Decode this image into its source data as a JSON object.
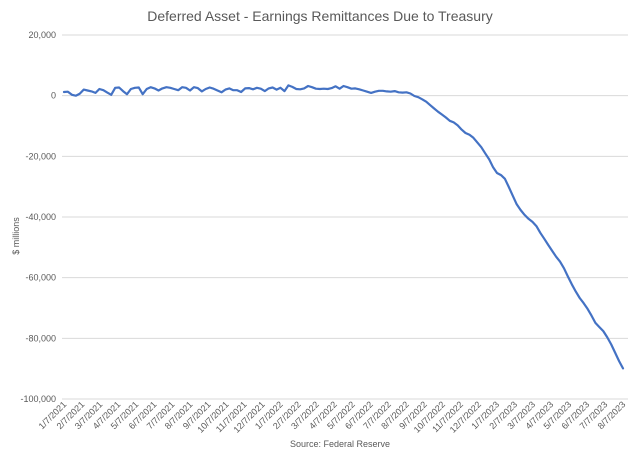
{
  "chart_data": {
    "type": "line",
    "title": "Deferred Asset - Earnings Remittances Due to Treasury",
    "xlabel": "",
    "ylabel": "$ millions",
    "source": "Source: Federal Reserve",
    "ylim": [
      -100000,
      20000
    ],
    "yticks": [
      20000,
      0,
      -20000,
      -40000,
      -60000,
      -80000,
      -100000
    ],
    "ytick_labels": [
      "20,000",
      "0",
      "-20,000",
      "-40,000",
      "-60,000",
      "-80,000",
      "-100,000"
    ],
    "xtick_labels": [
      "1/7/2021",
      "2/7/2021",
      "3/7/2021",
      "4/7/2021",
      "5/7/2021",
      "6/7/2021",
      "7/7/2021",
      "8/7/2021",
      "9/7/2021",
      "10/7/2021",
      "11/7/2021",
      "12/7/2021",
      "1/7/2022",
      "2/7/2022",
      "3/7/2022",
      "4/7/2022",
      "5/7/2022",
      "6/7/2022",
      "7/7/2022",
      "8/7/2022",
      "9/7/2022",
      "10/7/2022",
      "11/7/2022",
      "12/7/2022",
      "1/7/2023",
      "2/7/2023",
      "3/7/2023",
      "4/7/2023",
      "5/7/2023",
      "6/7/2023",
      "7/7/2023",
      "8/7/2023"
    ],
    "grid": true,
    "series": [
      {
        "name": "Deferred Asset",
        "color": "#4472c4",
        "values": [
          1200,
          1300,
          300,
          0,
          600,
          2000,
          1700,
          1400,
          900,
          2200,
          1800,
          1000,
          300,
          2600,
          2700,
          1500,
          500,
          2200,
          2600,
          2700,
          500,
          2200,
          2800,
          2400,
          1700,
          2400,
          2800,
          2600,
          2200,
          1800,
          2800,
          2600,
          1700,
          2800,
          2500,
          1400,
          2200,
          2700,
          2300,
          1700,
          1100,
          2000,
          2400,
          1800,
          1800,
          1200,
          2400,
          2500,
          2100,
          2600,
          2300,
          1500,
          2400,
          2700,
          2000,
          2600,
          1500,
          3400,
          2900,
          2200,
          2100,
          2400,
          3200,
          2800,
          2300,
          2200,
          2300,
          2200,
          2500,
          3100,
          2300,
          3200,
          2800,
          2300,
          2400,
          2100,
          1700,
          1300,
          900,
          1300,
          1600,
          1600,
          1400,
          1300,
          1500,
          1100,
          1000,
          1100,
          700,
          -100,
          -500,
          -1200,
          -2000,
          -3100,
          -4200,
          -5300,
          -6200,
          -7200,
          -8300,
          -8800,
          -9800,
          -11200,
          -12300,
          -12900,
          -13900,
          -15400,
          -17000,
          -19000,
          -21000,
          -23600,
          -25500,
          -26200,
          -27400,
          -30100,
          -33000,
          -35800,
          -37700,
          -39300,
          -40600,
          -41600,
          -43000,
          -45200,
          -47200,
          -49200,
          -51100,
          -53100,
          -54700,
          -56900,
          -59600,
          -62200,
          -64600,
          -66700,
          -68400,
          -70300,
          -72500,
          -74900,
          -76300,
          -77600,
          -79700,
          -82000,
          -84700,
          -87500,
          -89900
        ]
      }
    ]
  }
}
